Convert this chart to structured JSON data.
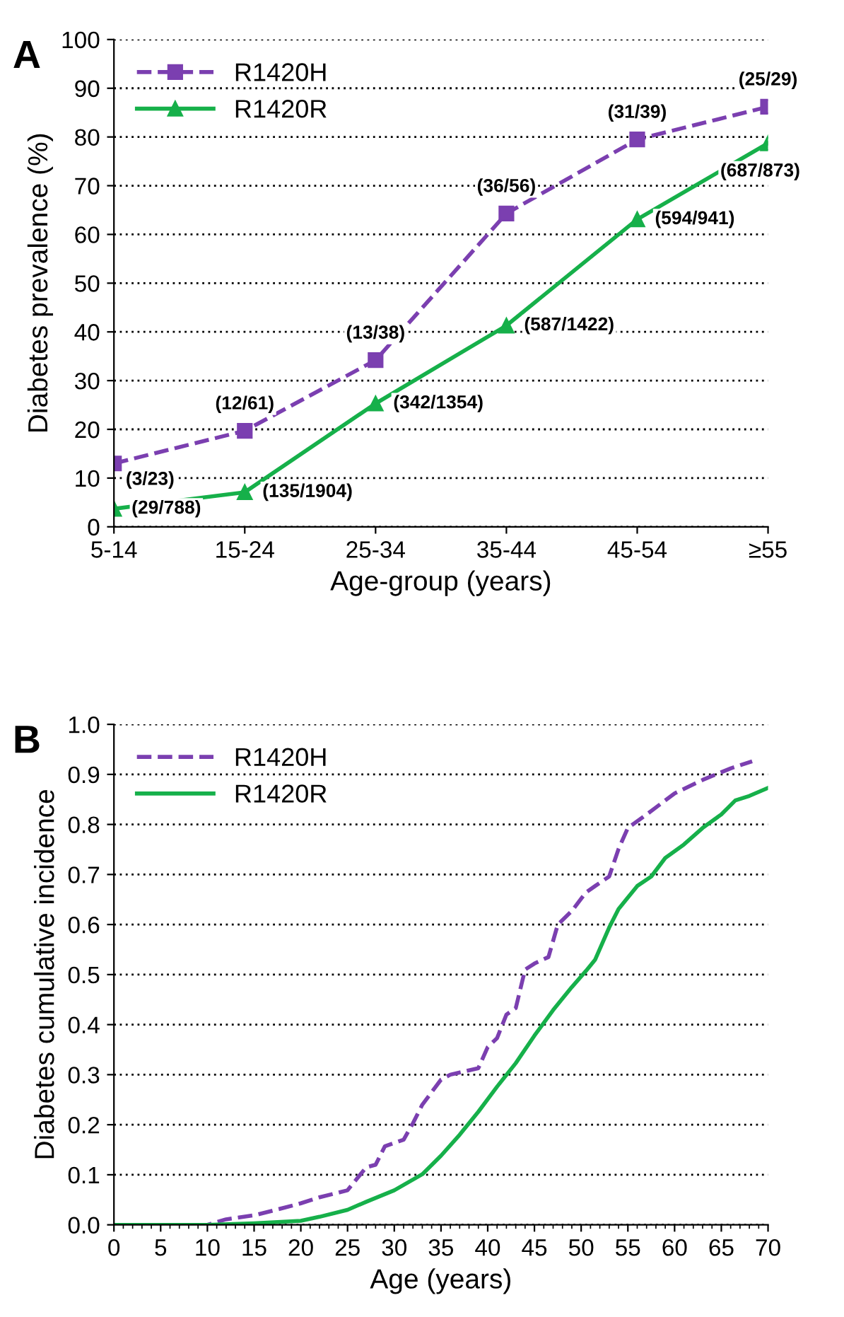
{
  "chart_data": [
    {
      "type": "line",
      "title": "A",
      "xlabel": "Age-group (years)",
      "ylabel": "Diabetes prevalence (%)",
      "categories": [
        "5-14",
        "15-24",
        "25-34",
        "35-44",
        "45-54",
        "≥55"
      ],
      "ylim": [
        0,
        100
      ],
      "yticks": [
        0,
        10,
        20,
        30,
        40,
        50,
        60,
        70,
        80,
        90,
        100
      ],
      "grid": "y",
      "legend": "top left",
      "series": [
        {
          "name": "R1420H",
          "color": "#7b3fb0",
          "marker": "square",
          "line_style": "dashed",
          "values": [
            13.0,
            19.7,
            34.2,
            64.3,
            79.5,
            86.2
          ],
          "value_labels": [
            "(3/23)",
            "(12/61)",
            "(13/38)",
            "(36/56)",
            "(31/39)",
            "(25/29)"
          ]
        },
        {
          "name": "R1420R",
          "color": "#16b04a",
          "marker": "triangle",
          "line_style": "solid",
          "values": [
            3.7,
            7.1,
            25.3,
            41.3,
            63.1,
            78.7
          ],
          "value_labels": [
            "(29/788)",
            "(135/1904)",
            "(342/1354)",
            "(587/1422)",
            "(594/941)",
            "(687/873)"
          ]
        }
      ]
    },
    {
      "type": "line",
      "title": "B",
      "xlabel": "Age (years)",
      "ylabel": "Diabetes cumulative incidence",
      "xlim": [
        0,
        70
      ],
      "xticks": [
        0,
        5,
        10,
        15,
        20,
        25,
        30,
        35,
        40,
        45,
        50,
        55,
        60,
        65,
        70
      ],
      "ylim": [
        0,
        1.0
      ],
      "yticks": [
        {
          "value": 0,
          "label": "0.0"
        },
        0.1,
        0.2,
        0.3,
        0.4,
        0.5,
        0.6,
        0.7,
        0.8,
        0.9,
        {
          "value": 1,
          "label": "1.0"
        }
      ],
      "grid": "y",
      "legend": "top left",
      "series": [
        {
          "name": "R1420H",
          "color": "#7b3fb0",
          "line_style": "dashed",
          "x": [
            0,
            10,
            12,
            15,
            18,
            20,
            22,
            25,
            26,
            27,
            28,
            29,
            31,
            32,
            33,
            35,
            36,
            39,
            40,
            41,
            42,
            43,
            44,
            45,
            46.5,
            47.5,
            49,
            50.5,
            51.5,
            53,
            54,
            55,
            57,
            60,
            63,
            66,
            68.3
          ],
          "values": [
            0,
            0,
            0.011,
            0.019,
            0.033,
            0.043,
            0.055,
            0.069,
            0.092,
            0.115,
            0.12,
            0.157,
            0.17,
            0.203,
            0.24,
            0.29,
            0.3,
            0.313,
            0.355,
            0.373,
            0.42,
            0.433,
            0.51,
            0.522,
            0.535,
            0.6,
            0.627,
            0.664,
            0.677,
            0.696,
            0.751,
            0.793,
            0.82,
            0.862,
            0.889,
            0.912,
            0.926
          ]
        },
        {
          "name": "R1420R",
          "color": "#16b04a",
          "line_style": "solid",
          "x": [
            0,
            10,
            15,
            20,
            22,
            25,
            27,
            30,
            33,
            35,
            37,
            39,
            41,
            43,
            45,
            47,
            49,
            50.5,
            51.5,
            53,
            54,
            56,
            57.5,
            59,
            61,
            63,
            65,
            66.5,
            68,
            70
          ],
          "values": [
            0,
            0,
            0.003,
            0.008,
            0.016,
            0.03,
            0.046,
            0.069,
            0.101,
            0.138,
            0.18,
            0.226,
            0.276,
            0.323,
            0.378,
            0.429,
            0.475,
            0.507,
            0.53,
            0.594,
            0.631,
            0.677,
            0.696,
            0.733,
            0.76,
            0.793,
            0.82,
            0.848,
            0.857,
            0.873
          ]
        }
      ]
    }
  ]
}
